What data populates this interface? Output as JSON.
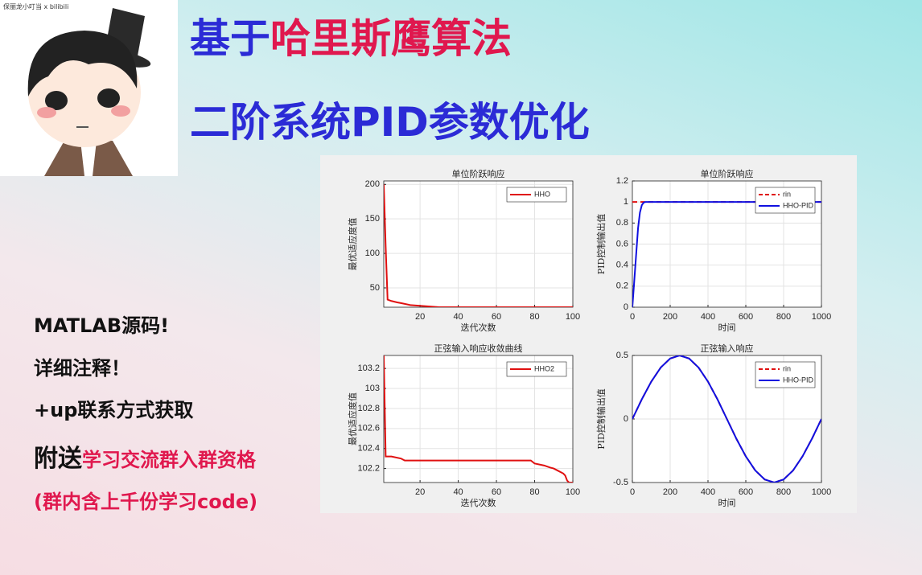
{
  "avatar": {
    "caption": "保丽龙小叮当 x bilibili"
  },
  "headline": {
    "line1": [
      {
        "text": "基于",
        "color": "#2b2bd6"
      },
      {
        "text": "哈里斯鹰算法",
        "color": "#e0184e"
      }
    ],
    "line2": [
      {
        "text": "二阶系统PID参数优化",
        "color": "#2b2bd6"
      }
    ]
  },
  "notes": [
    [
      {
        "text": "MATLAB源码!",
        "color": "#111111"
      }
    ],
    [
      {
        "text": "详细注释！",
        "color": "#111111"
      }
    ],
    [
      {
        "text": "+up联系方式获取",
        "color": "#111111"
      }
    ],
    [
      {
        "text": "附送",
        "color": "#111111"
      },
      {
        "text": "学习交流群入群资格",
        "color": "#e0184e"
      }
    ],
    [
      {
        "text": "(群内含上千份学习code)",
        "color": "#e0184e"
      }
    ]
  ],
  "chart_data": [
    {
      "type": "line",
      "title": "单位阶跃响应",
      "xlabel": "迭代次数",
      "ylabel": "最优适应度值",
      "x": [
        1,
        2,
        3,
        5,
        8,
        10,
        15,
        20,
        25,
        30,
        40,
        60,
        80,
        100
      ],
      "series": [
        {
          "name": "HHO",
          "color": "#e01010",
          "linestyle": "solid",
          "values": [
            200,
            110,
            33,
            31,
            29,
            28,
            25,
            24,
            23,
            22,
            22,
            22,
            22,
            22
          ]
        }
      ],
      "xlim": [
        1,
        100
      ],
      "xticks": [
        20,
        40,
        60,
        80,
        100
      ],
      "ylim": [
        22,
        205
      ],
      "yticks": [
        50,
        100,
        150,
        200
      ],
      "grid": true,
      "legend": "upper right"
    },
    {
      "type": "line",
      "title": "单位阶跃响应",
      "xlabel": "时间",
      "ylabel": "PID控制输出值",
      "x": [
        0,
        10,
        20,
        30,
        40,
        50,
        60,
        70,
        80,
        100,
        200,
        400,
        600,
        800,
        1000
      ],
      "series": [
        {
          "name": "rin",
          "color": "#e01010",
          "linestyle": "dashed",
          "values": [
            1,
            1,
            1,
            1,
            1,
            1,
            1,
            1,
            1,
            1,
            1,
            1,
            1,
            1,
            1
          ]
        },
        {
          "name": "HHO-PID",
          "color": "#1010e0",
          "linestyle": "solid",
          "values": [
            0,
            0.25,
            0.5,
            0.75,
            0.9,
            0.97,
            0.995,
            1,
            1,
            1,
            1,
            1,
            1,
            1,
            1
          ]
        }
      ],
      "xlim": [
        0,
        1000
      ],
      "xticks": [
        0,
        200,
        400,
        600,
        800,
        1000
      ],
      "ylim": [
        0,
        1.2
      ],
      "yticks": [
        0,
        0.2,
        0.4,
        0.6,
        0.8,
        1,
        1.2
      ],
      "grid": true,
      "legend": "upper right"
    },
    {
      "type": "line",
      "title": "正弦输入响应收敛曲线",
      "xlabel": "迭代次数",
      "ylabel": "最优适应度值",
      "x": [
        1,
        2,
        3,
        5,
        10,
        12,
        15,
        20,
        40,
        60,
        78,
        80,
        85,
        88,
        90,
        92,
        95,
        96,
        97,
        98,
        100
      ],
      "series": [
        {
          "name": "HHO2",
          "color": "#e01010",
          "linestyle": "solid",
          "values": [
            103.33,
            102.32,
            102.32,
            102.32,
            102.3,
            102.28,
            102.28,
            102.28,
            102.28,
            102.28,
            102.28,
            102.25,
            102.23,
            102.21,
            102.2,
            102.18,
            102.15,
            102.13,
            102.08,
            102.06,
            102.06
          ]
        }
      ],
      "xlim": [
        1,
        100
      ],
      "xticks": [
        20,
        40,
        60,
        80,
        100
      ],
      "ylim": [
        102.06,
        103.33
      ],
      "yticks": [
        102.2,
        102.4,
        102.6,
        102.8,
        103,
        103.2
      ],
      "grid": true,
      "legend": "upper right"
    },
    {
      "type": "line",
      "title": "正弦输入响应",
      "xlabel": "时间",
      "ylabel": "PID控制输出值",
      "x": [
        0,
        50,
        100,
        150,
        200,
        250,
        300,
        350,
        400,
        450,
        500,
        550,
        600,
        650,
        700,
        750,
        800,
        850,
        900,
        950,
        1000
      ],
      "series": [
        {
          "name": "rin",
          "color": "#e01010",
          "linestyle": "dashed",
          "values": [
            0,
            0.155,
            0.294,
            0.405,
            0.476,
            0.5,
            0.476,
            0.405,
            0.294,
            0.155,
            0,
            -0.155,
            -0.294,
            -0.405,
            -0.476,
            -0.5,
            -0.476,
            -0.405,
            -0.294,
            -0.155,
            0
          ]
        },
        {
          "name": "HHO-PID",
          "color": "#1010e0",
          "linestyle": "solid",
          "values": [
            0,
            0.155,
            0.294,
            0.405,
            0.476,
            0.5,
            0.476,
            0.405,
            0.294,
            0.155,
            0,
            -0.155,
            -0.294,
            -0.405,
            -0.476,
            -0.5,
            -0.476,
            -0.405,
            -0.294,
            -0.155,
            0
          ]
        }
      ],
      "xlim": [
        0,
        1000
      ],
      "xticks": [
        0,
        200,
        400,
        600,
        800,
        1000
      ],
      "ylim": [
        -0.5,
        0.5
      ],
      "yticks": [
        -0.5,
        0,
        0.5
      ],
      "grid": true,
      "legend": "upper right"
    }
  ]
}
